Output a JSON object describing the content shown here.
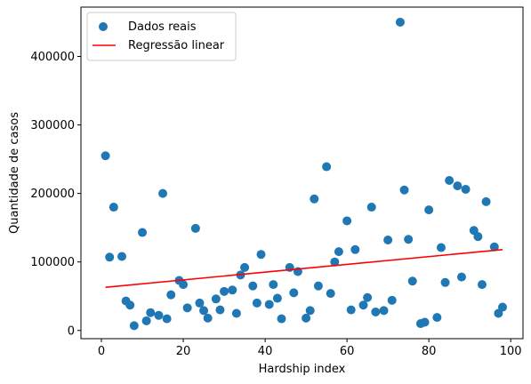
{
  "chart_data": {
    "type": "scatter",
    "xlabel": "Hardship index",
    "ylabel": "Quantidade de casos",
    "xlim": [
      -5,
      103
    ],
    "ylim": [
      -12000,
      472000
    ],
    "xticks": [
      0,
      20,
      40,
      60,
      80,
      100
    ],
    "yticks": [
      0,
      100000,
      200000,
      300000,
      400000
    ],
    "xtick_labels": [
      "0",
      "20",
      "40",
      "60",
      "80",
      "100"
    ],
    "ytick_labels": [
      "0",
      "100000",
      "200000",
      "300000",
      "400000"
    ],
    "grid": false,
    "legend_position": "upper left",
    "series": [
      {
        "name": "Dados reais",
        "kind": "scatter",
        "color": "#1f77b4",
        "points": [
          [
            1,
            255000
          ],
          [
            2,
            107000
          ],
          [
            3,
            180000
          ],
          [
            5,
            108000
          ],
          [
            6,
            43000
          ],
          [
            7,
            37000
          ],
          [
            8,
            7000
          ],
          [
            10,
            143000
          ],
          [
            11,
            14000
          ],
          [
            12,
            26000
          ],
          [
            14,
            22000
          ],
          [
            15,
            200000
          ],
          [
            16,
            17000
          ],
          [
            17,
            52000
          ],
          [
            19,
            73000
          ],
          [
            20,
            67000
          ],
          [
            21,
            33000
          ],
          [
            23,
            149000
          ],
          [
            24,
            40000
          ],
          [
            25,
            29000
          ],
          [
            26,
            18000
          ],
          [
            28,
            46000
          ],
          [
            29,
            30000
          ],
          [
            30,
            57000
          ],
          [
            32,
            59000
          ],
          [
            33,
            25000
          ],
          [
            34,
            81000
          ],
          [
            35,
            92000
          ],
          [
            37,
            65000
          ],
          [
            38,
            40000
          ],
          [
            39,
            111000
          ],
          [
            41,
            38000
          ],
          [
            42,
            67000
          ],
          [
            43,
            47000
          ],
          [
            44,
            17000
          ],
          [
            46,
            92000
          ],
          [
            47,
            55000
          ],
          [
            48,
            86000
          ],
          [
            50,
            18000
          ],
          [
            51,
            29000
          ],
          [
            52,
            192000
          ],
          [
            53,
            65000
          ],
          [
            55,
            239000
          ],
          [
            56,
            54000
          ],
          [
            57,
            100000
          ],
          [
            58,
            115000
          ],
          [
            60,
            160000
          ],
          [
            61,
            30000
          ],
          [
            62,
            118000
          ],
          [
            64,
            37000
          ],
          [
            65,
            48000
          ],
          [
            66,
            180000
          ],
          [
            67,
            27000
          ],
          [
            69,
            29000
          ],
          [
            70,
            132000
          ],
          [
            71,
            44000
          ],
          [
            73,
            450000
          ],
          [
            74,
            205000
          ],
          [
            75,
            133000
          ],
          [
            76,
            72000
          ],
          [
            78,
            10000
          ],
          [
            79,
            12000
          ],
          [
            80,
            176000
          ],
          [
            82,
            19000
          ],
          [
            83,
            121000
          ],
          [
            84,
            70000
          ],
          [
            85,
            219000
          ],
          [
            87,
            211000
          ],
          [
            88,
            78000
          ],
          [
            89,
            206000
          ],
          [
            91,
            146000
          ],
          [
            92,
            137000
          ],
          [
            93,
            67000
          ],
          [
            94,
            188000
          ],
          [
            96,
            122000
          ],
          [
            97,
            25000
          ],
          [
            98,
            34000
          ]
        ]
      },
      {
        "name": "Regressão linear",
        "kind": "line",
        "color": "#ff0000",
        "points": [
          [
            1,
            63000
          ],
          [
            98,
            118000
          ]
        ]
      }
    ]
  }
}
